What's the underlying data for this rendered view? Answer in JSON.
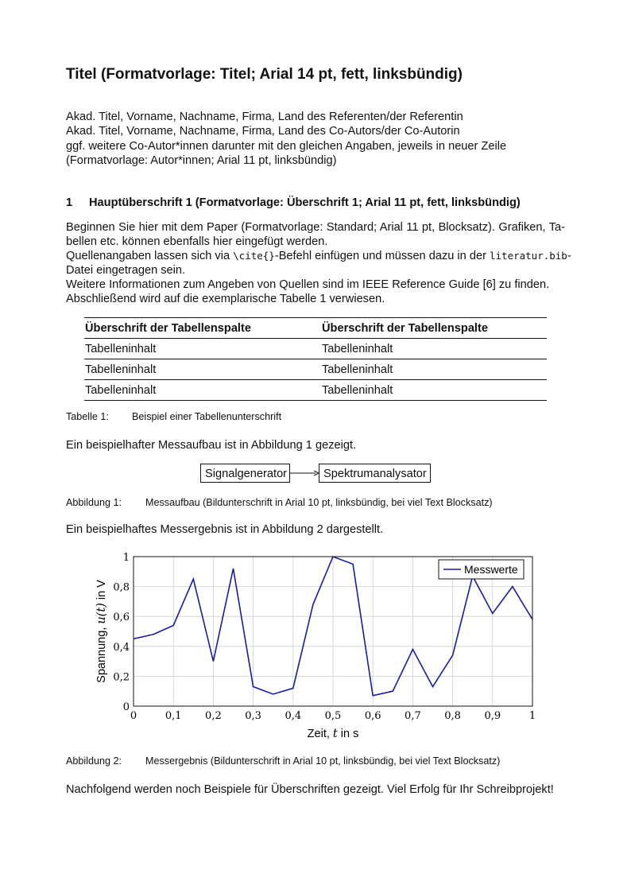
{
  "title": "Titel (Formatvorlage: Titel; Arial 14 pt, fett, linksbündig)",
  "authors": [
    "Akad. Titel, Vorname, Nachname, Firma, Land des Referenten/der Referentin",
    "Akad. Titel, Vorname, Nachname, Firma, Land des Co-Autors/der Co-Autorin",
    "ggf. weitere Co-Autor*innen darunter mit den gleichen Angaben, jeweils in neuer Zeile",
    "(Formatvorlage: Autor*innen; Arial 11 pt, linksbündig)"
  ],
  "section": {
    "number": "1",
    "heading": "Hauptüberschrift 1 (Formatvorlage: Überschrift 1; Arial 11 pt, fett, linksbündig)"
  },
  "paragraph": {
    "line1": "Beginnen Sie hier mit dem Paper (Formatvorlage: Standard; Arial 11 pt, Blocksatz). Grafiken, Ta-",
    "line2": "bellen etc. können ebenfalls hier eingefügt werden.",
    "line3_a": "Quellenangaben lassen sich via ",
    "line3_code1": "\\cite{}",
    "line3_b": "-Befehl einfügen und müssen dazu in der ",
    "line3_code2": "literatur.bib",
    "line3_c": "-",
    "line4": "Datei eingetragen sein.",
    "line5": "Weitere Informationen zum Angeben von Quellen sind im IEEE Reference Guide [6] zu finden.",
    "line6": "Abschließend wird auf die exemplarische Tabelle 1 verwiesen."
  },
  "table": {
    "headers": [
      "Überschrift der Tabellenspalte",
      "Überschrift der Tabellenspalte"
    ],
    "rows": [
      [
        "Tabelleninhalt",
        "Tabelleninhalt"
      ],
      [
        "Tabelleninhalt",
        "Tabelleninhalt"
      ],
      [
        "Tabelleninhalt",
        "Tabelleninhalt"
      ]
    ],
    "caption_label": "Tabelle 1:",
    "caption_text": "Beispiel einer Tabellenunterschrift"
  },
  "figure1": {
    "intro": "Ein beispielhafter Messaufbau ist in Abbildung 1 gezeigt.",
    "box1": "Signalgenerator",
    "box2": "Spektrumanalysator",
    "caption_label": "Abbildung 1:",
    "caption_text": "Messaufbau (Bildunterschrift in Arial 10 pt, linksbündig, bei viel Text Blocksatz)"
  },
  "figure2": {
    "intro": "Ein beispielhaftes Messergebnis ist in Abbildung 2 dargestellt.",
    "caption_label": "Abbildung 2:",
    "caption_text": "Messergebnis (Bildunterschrift in Arial 10 pt, linksbündig, bei viel Text Blocksatz)"
  },
  "closing": "Nachfolgend werden noch Beispiele für Überschriften gezeigt. Viel Erfolg für Ihr Schreibprojekt!",
  "chart_data": {
    "type": "line",
    "xlabel_pre": "Zeit, ",
    "xlabel_var": "t",
    "xlabel_post": " in s",
    "ylabel_pre": "Spannung, ",
    "ylabel_var": "u(t)",
    "ylabel_post": " in V",
    "xlim": [
      0,
      1
    ],
    "ylim": [
      0,
      1
    ],
    "xticks": [
      "0",
      "0,1",
      "0,2",
      "0,3",
      "0,4",
      "0,5",
      "0,6",
      "0,7",
      "0,8",
      "0,9",
      "1"
    ],
    "yticks": [
      "0",
      "0,2",
      "0,4",
      "0,6",
      "0,8",
      "1"
    ],
    "grid": true,
    "legend_position": "top-right",
    "series": [
      {
        "name": "Messwerte",
        "color": "#1a1aa6",
        "x": [
          0,
          0.05,
          0.1,
          0.15,
          0.2,
          0.25,
          0.3,
          0.35,
          0.4,
          0.45,
          0.5,
          0.55,
          0.6,
          0.65,
          0.7,
          0.75,
          0.8,
          0.85,
          0.9,
          0.95,
          1
        ],
        "y": [
          0.45,
          0.48,
          0.54,
          0.85,
          0.3,
          0.92,
          0.13,
          0.08,
          0.12,
          0.68,
          1.0,
          0.95,
          0.07,
          0.1,
          0.38,
          0.13,
          0.34,
          0.87,
          0.62,
          0.8,
          0.58
        ]
      }
    ]
  }
}
